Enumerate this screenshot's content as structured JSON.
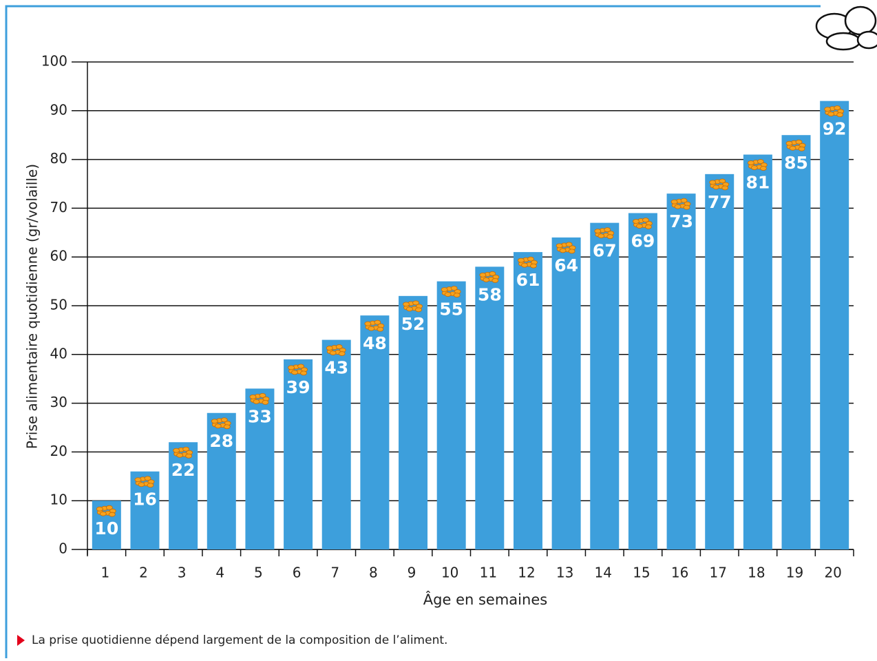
{
  "chart_data": {
    "type": "bar",
    "categories": [
      "1",
      "2",
      "3",
      "4",
      "5",
      "6",
      "7",
      "8",
      "9",
      "10",
      "11",
      "12",
      "13",
      "14",
      "15",
      "16",
      "17",
      "18",
      "19",
      "20"
    ],
    "values": [
      10,
      16,
      22,
      28,
      33,
      39,
      43,
      48,
      52,
      55,
      58,
      61,
      64,
      67,
      69,
      73,
      77,
      81,
      85,
      92
    ],
    "color": "#3d9fdc",
    "ylim": [
      0,
      100
    ],
    "yticks": [
      0,
      10,
      20,
      30,
      40,
      50,
      60,
      70,
      80,
      90,
      100
    ],
    "grid": true,
    "xlabel": "Âge en semaines",
    "ylabel": "Prise alimentaire quotidienne (gr/volaille)",
    "note": "La prise quotidienne dépend largement de la composition de l’aliment."
  }
}
